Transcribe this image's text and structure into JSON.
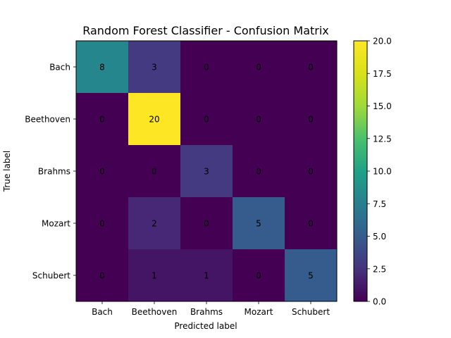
{
  "chart_data": {
    "type": "heatmap",
    "title": "Random Forest Classifier - Confusion Matrix",
    "xlabel": "Predicted label",
    "ylabel": "True label",
    "x_categories": [
      "Bach",
      "Beethoven",
      "Brahms",
      "Mozart",
      "Schubert"
    ],
    "y_categories": [
      "Bach",
      "Beethoven",
      "Brahms",
      "Mozart",
      "Schubert"
    ],
    "values": [
      [
        8,
        3,
        0,
        0,
        0
      ],
      [
        0,
        20,
        0,
        0,
        0
      ],
      [
        0,
        0,
        3,
        0,
        0
      ],
      [
        0,
        2,
        0,
        5,
        0
      ],
      [
        0,
        1,
        1,
        0,
        5
      ]
    ],
    "colorscale": "viridis",
    "vmin": 0,
    "vmax": 20,
    "colorbar_ticks": [
      "0.0",
      "2.5",
      "5.0",
      "7.5",
      "10.0",
      "12.5",
      "15.0",
      "17.5",
      "20.0"
    ],
    "annotation_colors": {
      "low": "#fde725",
      "high": "#440154"
    }
  }
}
